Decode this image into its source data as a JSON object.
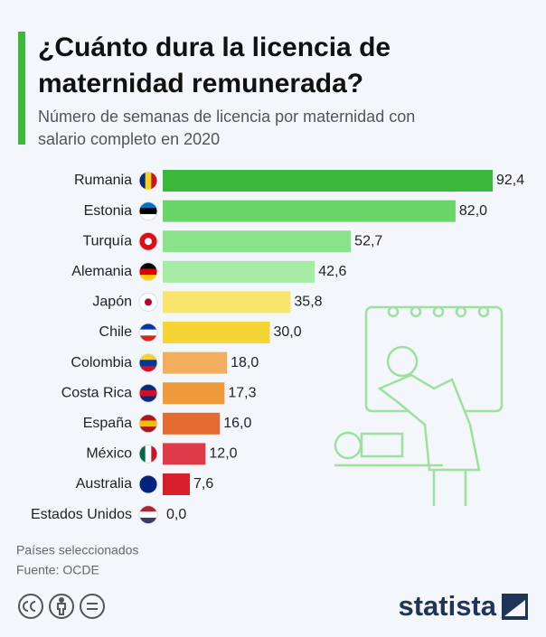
{
  "chart_data": {
    "type": "bar",
    "orientation": "horizontal",
    "title": "¿Cuánto dura la licencia de maternidad remunerada?",
    "subtitle": "Número de semanas de licencia por maternidad con salario completo en 2020",
    "categories": [
      "Rumania",
      "Estonia",
      "Turquía",
      "Alemania",
      "Japón",
      "Chile",
      "Colombia",
      "Costa Rica",
      "España",
      "México",
      "Australia",
      "Estados Unidos"
    ],
    "values": [
      92.4,
      82.0,
      52.7,
      42.6,
      35.8,
      30.0,
      18.0,
      17.3,
      16.0,
      12.0,
      7.6,
      0.0
    ],
    "value_labels": [
      "92,4",
      "82,0",
      "52,7",
      "42,6",
      "35,8",
      "30,0",
      "18,0",
      "17,3",
      "16,0",
      "12,0",
      "7,6",
      "0,0"
    ],
    "colors": [
      "#3cb93c",
      "#6bd46b",
      "#8ae38a",
      "#a6eca6",
      "#f9e46c",
      "#f5d535",
      "#f2ae5f",
      "#ef9a3b",
      "#e46a31",
      "#df3a4a",
      "#d61f2a",
      "#c8102e"
    ],
    "note": "Países seleccionados",
    "source": "Fuente: OCDE",
    "logo": "statista"
  }
}
